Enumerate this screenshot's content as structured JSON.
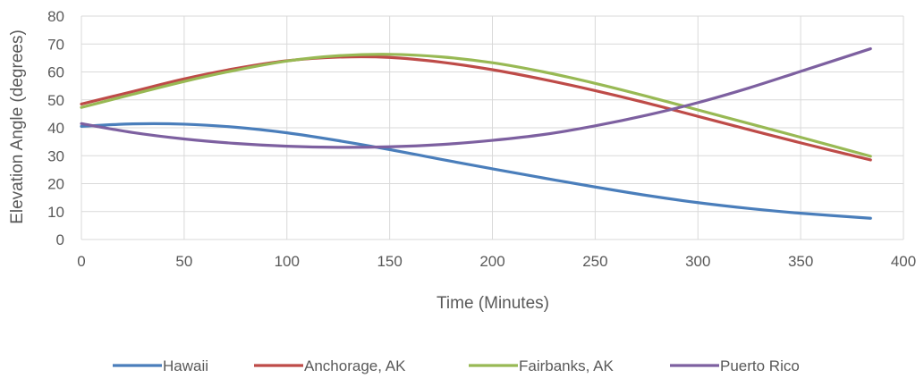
{
  "chart_data": {
    "type": "line",
    "title": "",
    "xlabel": "Time (Minutes)",
    "ylabel": "Elevation Angle (degrees)",
    "xlim": [
      0,
      400
    ],
    "ylim": [
      0,
      80
    ],
    "xticks": [
      0,
      50,
      100,
      150,
      200,
      250,
      300,
      350,
      400
    ],
    "yticks": [
      0,
      10,
      20,
      30,
      40,
      50,
      60,
      70,
      80
    ],
    "x_tick_labels": [
      "0",
      "50",
      "100",
      "150",
      "200",
      "250",
      "300",
      "350",
      "400"
    ],
    "y_tick_labels": [
      "0",
      "10",
      "20",
      "30",
      "40",
      "50",
      "60",
      "70",
      "80"
    ],
    "grid": true,
    "legend_position": "bottom",
    "series": [
      {
        "name": "Hawaii",
        "color": "#4a7ebb",
        "x": [
          0,
          25,
          50,
          75,
          100,
          125,
          150,
          175,
          200,
          225,
          250,
          275,
          300,
          325,
          350,
          384
        ],
        "y": [
          40.5,
          41.4,
          41.3,
          40.2,
          38.2,
          35.4,
          32.2,
          28.7,
          25.3,
          22.0,
          18.8,
          15.8,
          13.2,
          11.1,
          9.4,
          7.6
        ]
      },
      {
        "name": "Anchorage, AK",
        "color": "#be4b48",
        "x": [
          0,
          25,
          50,
          75,
          100,
          125,
          150,
          175,
          200,
          225,
          250,
          275,
          300,
          325,
          350,
          384
        ],
        "y": [
          48.5,
          53.0,
          57.5,
          61.2,
          64.0,
          65.3,
          65.2,
          63.5,
          60.8,
          57.3,
          53.3,
          48.9,
          44.1,
          39.3,
          34.6,
          28.5
        ]
      },
      {
        "name": "Fairbanks, AK",
        "color": "#98b954",
        "x": [
          0,
          25,
          50,
          75,
          100,
          125,
          150,
          175,
          200,
          225,
          250,
          275,
          300,
          325,
          350,
          384
        ],
        "y": [
          47.3,
          52.0,
          56.6,
          60.6,
          63.9,
          65.8,
          66.3,
          65.4,
          63.3,
          60.0,
          55.9,
          51.3,
          46.4,
          41.5,
          36.6,
          29.8
        ]
      },
      {
        "name": "Puerto Rico",
        "color": "#7d60a0",
        "x": [
          0,
          25,
          50,
          75,
          100,
          125,
          150,
          175,
          200,
          225,
          250,
          275,
          300,
          325,
          350,
          384
        ],
        "y": [
          41.5,
          38.3,
          36.0,
          34.4,
          33.4,
          33.0,
          33.2,
          34.0,
          35.5,
          37.6,
          40.7,
          44.5,
          49.0,
          54.3,
          60.2,
          68.3
        ]
      }
    ]
  }
}
